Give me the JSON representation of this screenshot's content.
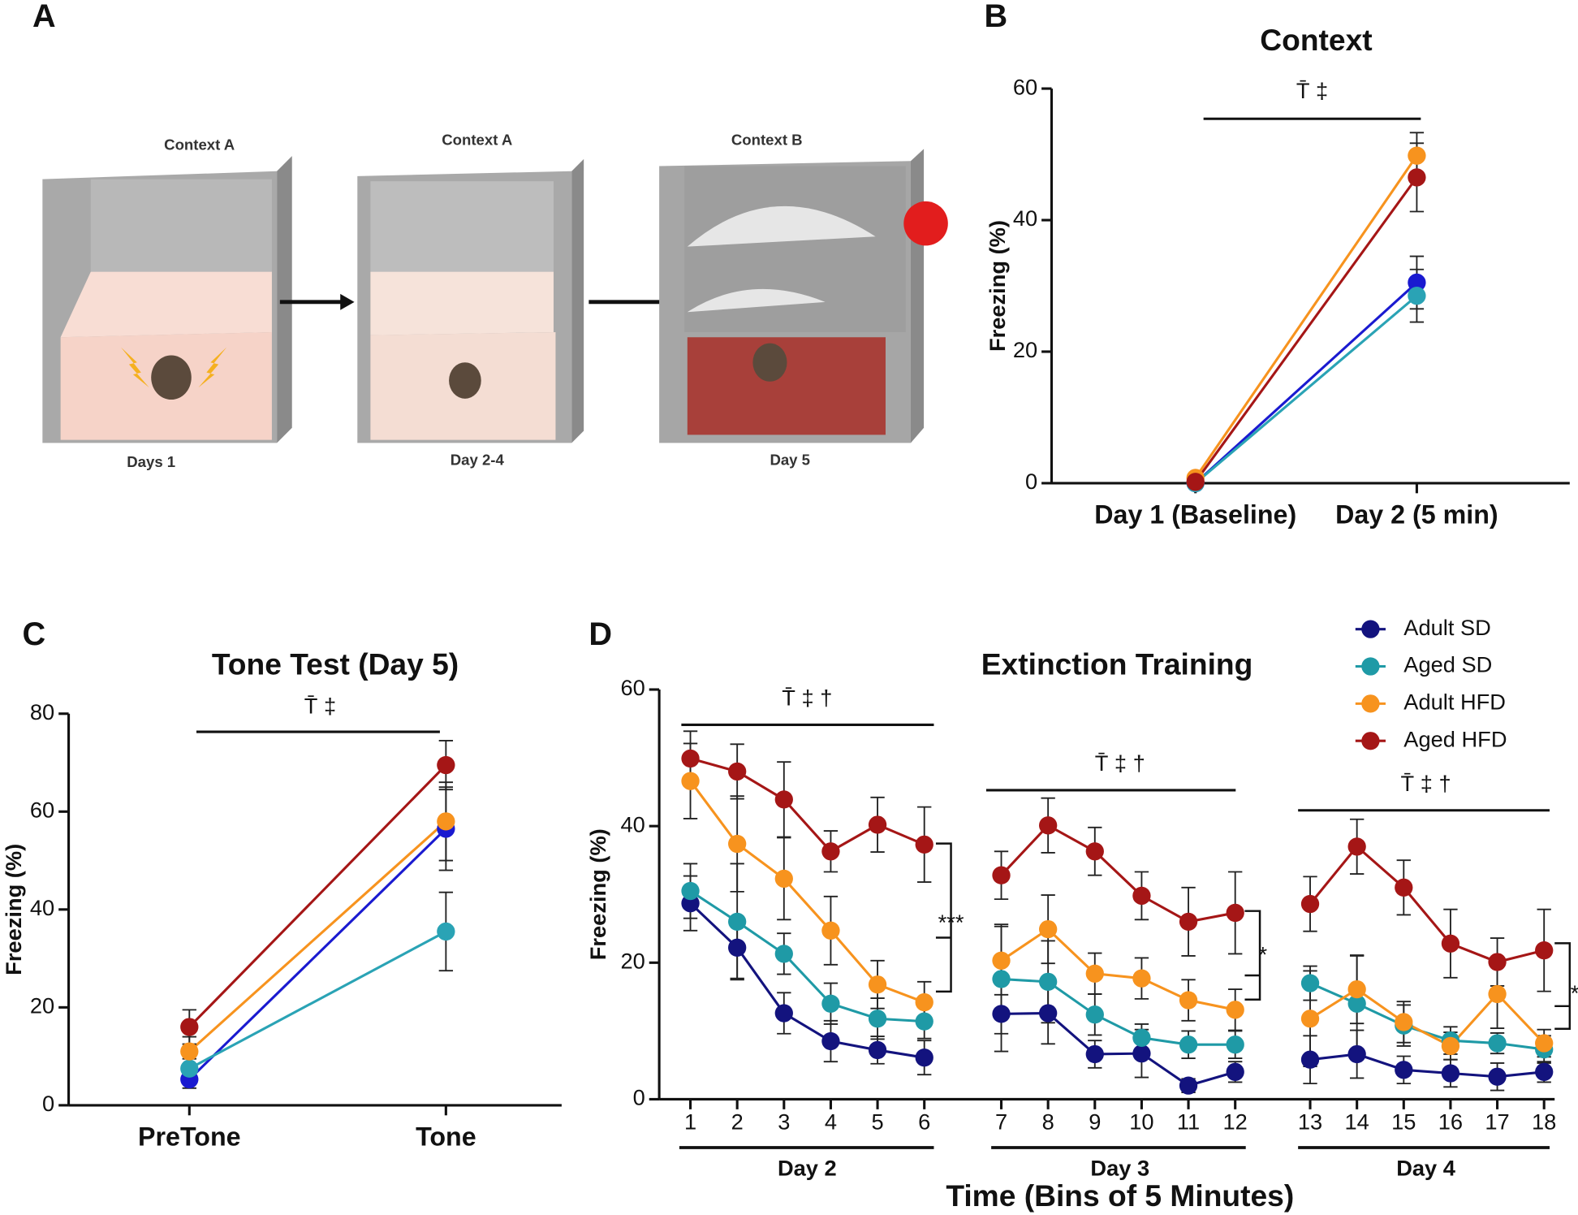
{
  "diagram": {
    "panel": "A",
    "contexts": [
      "Context A",
      "Context A",
      "Context B"
    ],
    "days": [
      "Days 1",
      "Day 2-4",
      "Day 5"
    ]
  },
  "chart_data": [
    {
      "type": "line",
      "panel": "B",
      "title": "Context",
      "y_label": "Freezing (%)",
      "annotation": "T̄ ‡",
      "categories": [
        "Day 1 (Baseline)",
        "Day 2 (5 min)"
      ],
      "ylim": [
        0,
        60
      ],
      "yticks": [
        0,
        20,
        40,
        60
      ],
      "series": [
        {
          "color": "#1a1ad0",
          "values": [
            0,
            30.5
          ],
          "errors": [
            0.3,
            4
          ]
        },
        {
          "color": "#2aa3b5",
          "values": [
            0,
            28.5
          ],
          "errors": [
            0.3,
            4
          ]
        },
        {
          "color": "#f7931e",
          "values": [
            0.8,
            49.8
          ],
          "errors": [
            0.3,
            3.5
          ]
        },
        {
          "color": "#a51616",
          "values": [
            0.2,
            46.5
          ],
          "errors": [
            0.3,
            5.2
          ]
        }
      ]
    },
    {
      "type": "line",
      "panel": "C",
      "title": "Tone Test (Day 5)",
      "y_label": "Freezing (%)",
      "annotation": "T̄ ‡",
      "categories": [
        "PreTone",
        "Tone"
      ],
      "ylim": [
        0,
        80
      ],
      "yticks": [
        0,
        20,
        40,
        60,
        80
      ],
      "series": [
        {
          "color": "#1a1ad0",
          "values": [
            5.3,
            56.5
          ],
          "errors": [
            1.8,
            8.5
          ]
        },
        {
          "color": "#2aa3b5",
          "values": [
            7.5,
            35.5
          ],
          "errors": [
            2,
            8
          ]
        },
        {
          "color": "#f7931e",
          "values": [
            11,
            58
          ],
          "errors": [
            3,
            8
          ]
        },
        {
          "color": "#a51616",
          "values": [
            16,
            69.5
          ],
          "errors": [
            3.5,
            5
          ]
        }
      ]
    },
    {
      "type": "line",
      "panel": "D",
      "title": "Extinction Training",
      "y_label": "Freezing (%)",
      "x_label": "Time (Bins of 5 Minutes)",
      "categories": [
        "1",
        "2",
        "3",
        "4",
        "5",
        "6",
        "7",
        "8",
        "9",
        "10",
        "11",
        "12",
        "13",
        "14",
        "15",
        "16",
        "17",
        "18"
      ],
      "x_groups": [
        "Day 2",
        "Day 3",
        "Day 4"
      ],
      "group_annotations": [
        "T̄ ‡ †",
        "T̄ ‡ †",
        "T̄ ‡ †"
      ],
      "significance": [
        "***",
        "*",
        "*"
      ],
      "ylim": [
        0,
        60
      ],
      "yticks": [
        0,
        20,
        40,
        60
      ],
      "legend": "top-right",
      "series": [
        {
          "name": "Adult SD",
          "color": "#13137e",
          "values": [
            28.7,
            22.2,
            12.6,
            8.5,
            7.2,
            6.1,
            12.5,
            12.6,
            6.6,
            6.7,
            2.0,
            4.0,
            5.8,
            6.6,
            4.3,
            3.8,
            3.3,
            4.0
          ],
          "errors": [
            4,
            4.5,
            3,
            3,
            2,
            2.5,
            5.5,
            4.5,
            2,
            3.5,
            1,
            1.5,
            3.5,
            3.5,
            2,
            2,
            2,
            1.5
          ]
        },
        {
          "name": "Aged SD",
          "color": "#1f9aa6",
          "values": [
            30.5,
            26.0,
            21.3,
            14.0,
            11.8,
            11.4,
            17.6,
            17.2,
            12.4,
            9.0,
            8.0,
            8.0,
            17.0,
            14.0,
            10.8,
            8.6,
            8.2,
            7.3
          ],
          "errors": [
            4,
            8.5,
            3,
            3,
            3,
            2.5,
            8,
            6,
            3,
            2,
            2,
            2,
            2.5,
            7,
            3,
            2,
            1.5,
            2
          ]
        },
        {
          "name": "Adult HFD",
          "color": "#f7931e",
          "values": [
            46.6,
            37.4,
            32.3,
            24.7,
            16.8,
            14.2,
            20.3,
            24.9,
            18.4,
            17.7,
            14.5,
            13.1,
            11.8,
            16.1,
            11.3,
            7.8,
            15.4,
            8.2
          ],
          "errors": [
            5.5,
            7,
            6,
            5,
            3.5,
            3,
            5,
            5,
            3,
            3,
            3,
            3,
            7,
            5,
            3,
            2,
            5,
            2
          ]
        },
        {
          "name": "Aged HFD",
          "color": "#a51616",
          "values": [
            49.9,
            48.0,
            43.9,
            36.3,
            40.2,
            37.3,
            32.8,
            40.1,
            36.3,
            29.8,
            26.0,
            27.3,
            28.6,
            37.0,
            31.0,
            22.8,
            20.1,
            21.8
          ],
          "errors": [
            4,
            4,
            5.5,
            3,
            4,
            5.5,
            3.5,
            4,
            3.5,
            3.5,
            5,
            6,
            4,
            4,
            4,
            5,
            3.5,
            6
          ]
        }
      ]
    }
  ]
}
